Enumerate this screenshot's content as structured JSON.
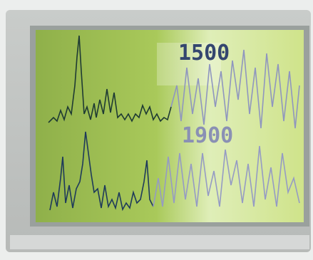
{
  "display": {
    "readout_top": "1500",
    "readout_bottom": "1900"
  }
}
